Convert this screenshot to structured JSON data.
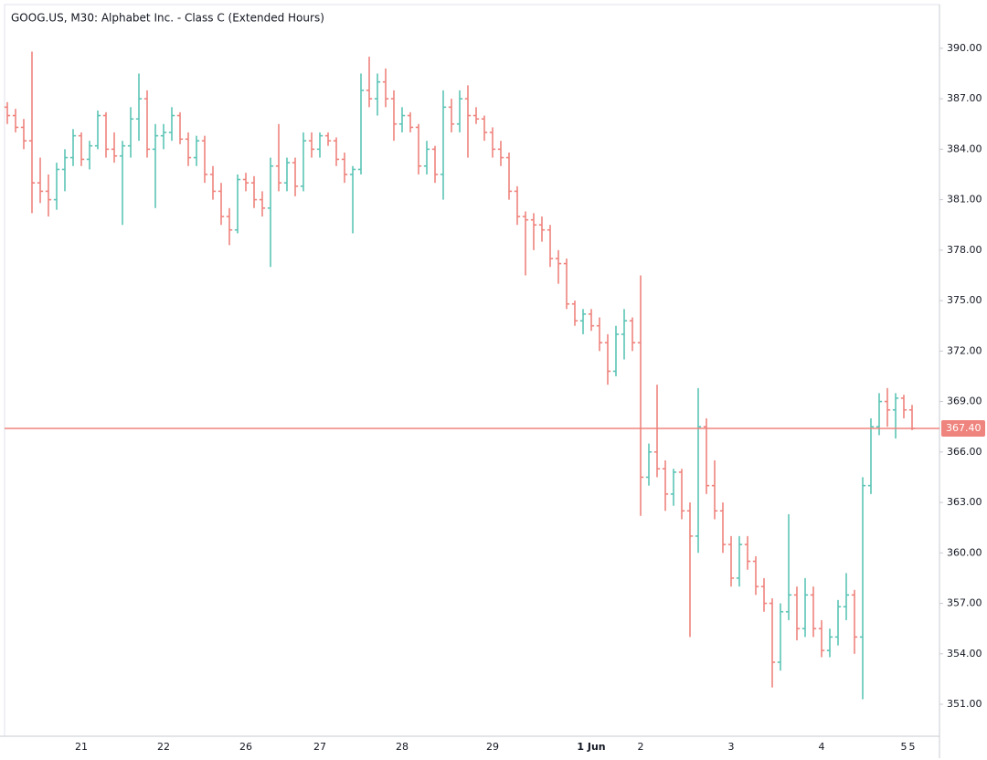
{
  "chart_data": {
    "type": "ohlc",
    "title": "GOOG.US, M30: Alphabet Inc. - Class C (Extended Hours)",
    "up_color": "#5cc4b6",
    "down_color": "#ef837d",
    "ylim": [
      349.1,
      392.6
    ],
    "yticks": [
      {
        "value": 351,
        "label": "351.00"
      },
      {
        "value": 354,
        "label": "354.00"
      },
      {
        "value": 357,
        "label": "357.00"
      },
      {
        "value": 360,
        "label": "360.00"
      },
      {
        "value": 363,
        "label": "363.00"
      },
      {
        "value": 366,
        "label": "366.00"
      },
      {
        "value": 369,
        "label": "369.00"
      },
      {
        "value": 372,
        "label": "372.00"
      },
      {
        "value": 375,
        "label": "375.00"
      },
      {
        "value": 378,
        "label": "378.00"
      },
      {
        "value": 381,
        "label": "381.00"
      },
      {
        "value": 384,
        "label": "384.00"
      },
      {
        "value": 387,
        "label": "387.00"
      },
      {
        "value": 390,
        "label": "390.00"
      }
    ],
    "last_price": {
      "value": 367.4,
      "label": "367.40"
    },
    "categories": [
      null,
      null,
      null,
      null,
      null,
      null,
      null,
      null,
      null,
      "21",
      null,
      null,
      null,
      null,
      null,
      null,
      null,
      null,
      null,
      "22",
      null,
      null,
      null,
      null,
      null,
      null,
      null,
      null,
      null,
      "26",
      null,
      null,
      null,
      null,
      null,
      null,
      null,
      null,
      "27",
      null,
      null,
      null,
      null,
      null,
      null,
      null,
      null,
      null,
      "28",
      null,
      null,
      null,
      null,
      null,
      null,
      null,
      null,
      null,
      null,
      "29",
      null,
      null,
      null,
      null,
      null,
      null,
      null,
      null,
      null,
      null,
      null,
      "1 Jun",
      null,
      null,
      null,
      null,
      null,
      "2",
      null,
      null,
      null,
      null,
      null,
      null,
      null,
      null,
      null,
      null,
      "3",
      null,
      null,
      null,
      null,
      null,
      null,
      null,
      null,
      null,
      null,
      "4",
      null,
      null,
      null,
      null,
      null,
      null,
      null,
      null,
      null,
      "5",
      "5"
    ],
    "open": [
      386.5,
      386.0,
      385.3,
      384.5,
      382.0,
      381.5,
      381.0,
      382.8,
      383.5,
      384.8,
      383.4,
      384.2,
      386.0,
      384.0,
      383.6,
      384.2,
      385.8,
      387.0,
      384.0,
      384.8,
      385.0,
      386.0,
      384.6,
      383.5,
      384.5,
      382.5,
      381.5,
      380.0,
      379.2,
      382.2,
      382.0,
      381.0,
      380.5,
      383.0,
      382.0,
      383.2,
      381.8,
      384.5,
      384.0,
      384.8,
      384.5,
      383.4,
      382.5,
      382.8,
      387.5,
      387.0,
      388.0,
      387.0,
      385.5,
      386.0,
      385.3,
      383.0,
      384.0,
      382.5,
      386.5,
      385.5,
      387.0,
      386.0,
      385.8,
      385.0,
      384.0,
      383.5,
      381.5,
      380.0,
      379.8,
      379.5,
      379.2,
      377.5,
      377.2,
      374.8,
      373.8,
      374.2,
      373.5,
      372.5,
      370.8,
      373.0,
      373.8,
      372.5,
      364.5,
      366.0,
      365.0,
      363.5,
      364.8,
      362.5,
      361.0,
      367.5,
      364.0,
      362.5,
      360.5,
      358.5,
      360.5,
      359.5,
      358.0,
      357.0,
      353.5,
      356.5,
      357.5,
      355.5,
      357.5,
      355.5,
      354.2,
      355.0,
      356.8,
      357.5,
      355.0,
      364.0,
      367.5,
      369.0,
      368.5,
      369.2,
      368.5
    ],
    "high": [
      386.8,
      386.4,
      385.8,
      389.8,
      383.5,
      382.5,
      383.2,
      384.0,
      385.2,
      385.0,
      384.5,
      386.3,
      386.2,
      385.0,
      384.5,
      386.5,
      388.5,
      387.5,
      385.5,
      385.5,
      386.5,
      386.2,
      385.0,
      384.8,
      384.8,
      383.0,
      382.0,
      380.5,
      382.5,
      382.6,
      382.4,
      381.5,
      383.5,
      385.5,
      383.5,
      383.5,
      385.0,
      385.0,
      385.0,
      385.0,
      384.7,
      383.8,
      383.0,
      388.5,
      389.5,
      388.5,
      388.8,
      387.5,
      386.5,
      386.2,
      385.5,
      384.5,
      384.2,
      387.5,
      387.0,
      387.5,
      387.8,
      386.5,
      386.0,
      385.3,
      384.5,
      383.8,
      381.8,
      380.3,
      380.2,
      380.0,
      379.5,
      378.0,
      377.5,
      375.0,
      374.5,
      374.5,
      374.0,
      373.0,
      373.5,
      374.5,
      374.0,
      376.5,
      366.5,
      370.0,
      365.5,
      365.0,
      365.0,
      363.0,
      369.8,
      368.0,
      365.5,
      363.0,
      361.0,
      361.0,
      361.0,
      359.8,
      358.5,
      357.3,
      357.0,
      362.3,
      358.0,
      358.5,
      358.0,
      356.0,
      355.5,
      357.2,
      358.8,
      357.8,
      364.5,
      368.0,
      369.5,
      369.8,
      369.5,
      369.4,
      368.8
    ],
    "low": [
      385.5,
      385.0,
      384.0,
      380.2,
      380.8,
      380.0,
      380.4,
      381.5,
      383.0,
      383.0,
      382.8,
      384.0,
      383.5,
      383.2,
      379.5,
      383.5,
      384.5,
      383.5,
      380.5,
      384.0,
      384.5,
      384.3,
      383.0,
      383.0,
      382.0,
      381.0,
      379.5,
      378.3,
      379.0,
      381.5,
      380.5,
      380.0,
      377.0,
      381.5,
      381.5,
      381.2,
      381.5,
      383.5,
      383.5,
      384.2,
      383.0,
      382.0,
      379.0,
      382.5,
      386.5,
      386.0,
      386.5,
      384.5,
      385.0,
      385.0,
      382.5,
      382.5,
      382.0,
      381.0,
      385.0,
      385.0,
      383.5,
      385.5,
      384.5,
      383.5,
      383.0,
      381.0,
      379.5,
      376.5,
      378.0,
      378.5,
      377.0,
      376.0,
      374.5,
      373.5,
      373.0,
      373.2,
      372.0,
      370.0,
      370.5,
      371.5,
      372.0,
      362.2,
      364.0,
      364.5,
      362.5,
      362.8,
      362.0,
      355.0,
      360.0,
      363.5,
      362.0,
      360.0,
      358.0,
      358.0,
      359.0,
      357.5,
      356.5,
      352.0,
      353.0,
      356.0,
      354.8,
      355.0,
      355.0,
      353.8,
      353.8,
      354.5,
      356.0,
      354.0,
      351.3,
      363.5,
      367.0,
      367.5,
      366.8,
      368.0,
      367.3
    ],
    "close": [
      386.0,
      385.3,
      384.5,
      382.0,
      381.5,
      381.0,
      382.8,
      383.5,
      384.8,
      383.4,
      384.2,
      386.0,
      384.0,
      383.6,
      384.2,
      385.8,
      387.0,
      384.0,
      384.8,
      385.0,
      386.0,
      384.6,
      383.5,
      384.5,
      382.5,
      381.5,
      380.0,
      379.2,
      382.2,
      382.0,
      381.0,
      380.5,
      383.0,
      382.0,
      383.2,
      381.8,
      384.5,
      384.0,
      384.8,
      384.5,
      383.4,
      382.5,
      382.8,
      387.5,
      387.0,
      388.0,
      387.0,
      385.5,
      386.0,
      385.3,
      383.0,
      384.0,
      382.5,
      386.5,
      385.5,
      387.0,
      386.0,
      385.8,
      385.0,
      384.0,
      383.5,
      381.5,
      380.0,
      379.8,
      379.5,
      379.2,
      377.5,
      377.2,
      374.8,
      373.8,
      374.2,
      373.5,
      372.5,
      370.8,
      373.0,
      373.8,
      372.5,
      364.5,
      366.0,
      365.0,
      363.5,
      364.8,
      362.5,
      361.0,
      367.5,
      364.0,
      362.5,
      360.5,
      358.5,
      360.5,
      359.5,
      358.0,
      357.0,
      353.5,
      356.5,
      357.5,
      355.5,
      357.5,
      355.5,
      354.2,
      355.0,
      356.8,
      357.5,
      355.0,
      364.0,
      367.5,
      369.0,
      368.5,
      369.2,
      368.5,
      367.4
    ]
  }
}
